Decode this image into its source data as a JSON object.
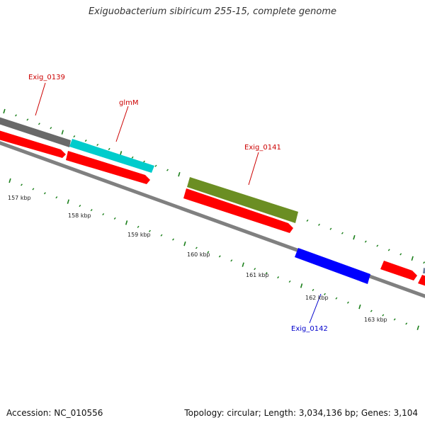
{
  "title": "Exiguobacterium sibiricum 255-15, complete genome",
  "footer": {
    "accession": "Accession: NC_010556",
    "stats": "Topology: circular; Length: 3,034,136 bp; Genes: 3,104"
  },
  "colors": {
    "backbone": "#808080",
    "forward_cds": "#ff0000",
    "reverse_cds": "#0000ff",
    "gene_gray": "#696969",
    "gene_cyan": "#00cccc",
    "gene_olive": "#6b8e23",
    "tick": "#1a7f1a",
    "label_red": "#cc0000",
    "label_blue": "#0000cc"
  },
  "scale": {
    "unit": "kbp",
    "labels": [
      "157 kbp",
      "158 kbp",
      "159 kbp",
      "160 kbp",
      "161 kbp",
      "162 kbp",
      "163 kbp"
    ]
  },
  "genes": [
    {
      "name": "Exig_0139",
      "color": "#cc0000"
    },
    {
      "name": "glmM",
      "color": "#cc0000"
    },
    {
      "name": "Exig_0141",
      "color": "#cc0000"
    },
    {
      "name": "Exig_0142",
      "color": "#0000cc"
    }
  ]
}
